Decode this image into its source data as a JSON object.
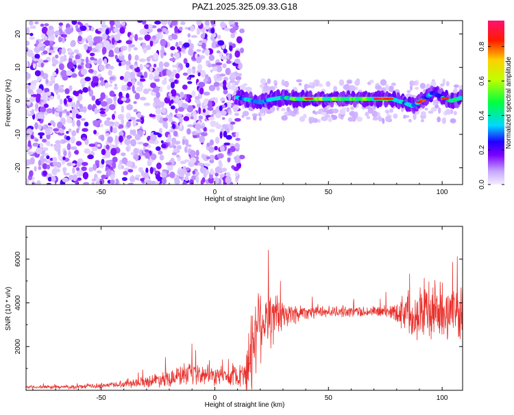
{
  "page_title": "PAZ1.2025.325.09.33.G18",
  "chart_data": [
    {
      "type": "heatmap",
      "title": "PAZ1.2025.325.09.33.G18",
      "xlabel": "Height of straight line (km)",
      "ylabel": "Frequency (Hz)",
      "xlim": [
        -83,
        109
      ],
      "ylim": [
        -25,
        24
      ],
      "xticks": [
        -50,
        0,
        50,
        100
      ],
      "yticks": [
        -20,
        -10,
        0,
        10,
        20
      ],
      "colorbar": {
        "label": "Normalized spectral amplitude",
        "range": [
          0,
          0.95
        ],
        "ticks": [
          "0.0",
          "0.2",
          "0.4",
          "0.6",
          "0.8"
        ],
        "tick_values": [
          0,
          0.2,
          0.4,
          0.6,
          0.8
        ],
        "colormap": "rainbow (violet-blue-cyan-green-yellow-red-magenta)"
      },
      "band": {
        "description": "coherent carrier band near 0 Hz above ~10 km height",
        "points": [
          {
            "x": 10,
            "f": 1,
            "amp": 0.3
          },
          {
            "x": 15,
            "f": 0.3,
            "amp": 0.35
          },
          {
            "x": 20,
            "f": -0.5,
            "amp": 0.3
          },
          {
            "x": 25,
            "f": 0.5,
            "amp": 0.3
          },
          {
            "x": 30,
            "f": 1,
            "amp": 0.35
          },
          {
            "x": 35,
            "f": 0.6,
            "amp": 0.45
          },
          {
            "x": 40,
            "f": 0.6,
            "amp": 0.5
          },
          {
            "x": 50,
            "f": 0.6,
            "amp": 0.5
          },
          {
            "x": 60,
            "f": 0.6,
            "amp": 0.5
          },
          {
            "x": 70,
            "f": 0.6,
            "amp": 0.45
          },
          {
            "x": 78,
            "f": 0.6,
            "amp": 0.5
          },
          {
            "x": 83,
            "f": -0.5,
            "amp": 0.35
          },
          {
            "x": 87,
            "f": -1.5,
            "amp": 0.3
          },
          {
            "x": 92,
            "f": 0.5,
            "amp": 0.3
          },
          {
            "x": 96,
            "f": 2.5,
            "amp": 0.3
          },
          {
            "x": 100,
            "f": 1,
            "amp": 0.3
          },
          {
            "x": 104,
            "f": 0,
            "amp": 0.4
          },
          {
            "x": 109,
            "f": 1,
            "amp": 0.35
          }
        ]
      }
    },
    {
      "type": "line",
      "xlabel": "Height of straight line (km)",
      "ylabel": "SNR (10 * v/v)",
      "xlim": [
        -83,
        109
      ],
      "ylim": [
        0,
        7500
      ],
      "xticks": [
        -50,
        0,
        50,
        100
      ],
      "yticks": [
        2000,
        4000,
        6000
      ],
      "line_color": "#e8312c",
      "envelope": {
        "x": [
          -83,
          -60,
          -45,
          -30,
          -20,
          -10,
          0,
          10,
          14,
          16,
          18,
          20,
          25,
          30,
          35,
          40,
          50,
          60,
          70,
          78,
          85,
          90,
          95,
          100,
          109
        ],
        "mean": [
          150,
          150,
          250,
          400,
          600,
          700,
          650,
          650,
          900,
          1700,
          3000,
          3300,
          3300,
          3400,
          3500,
          3600,
          3600,
          3600,
          3600,
          3600,
          3600,
          3600,
          3600,
          3600,
          3500
        ],
        "spread": [
          80,
          100,
          150,
          300,
          500,
          600,
          500,
          500,
          1200,
          2500,
          2500,
          2200,
          1600,
          900,
          600,
          400,
          300,
          300,
          300,
          400,
          1200,
          1600,
          1700,
          1500,
          1200
        ]
      }
    }
  ]
}
